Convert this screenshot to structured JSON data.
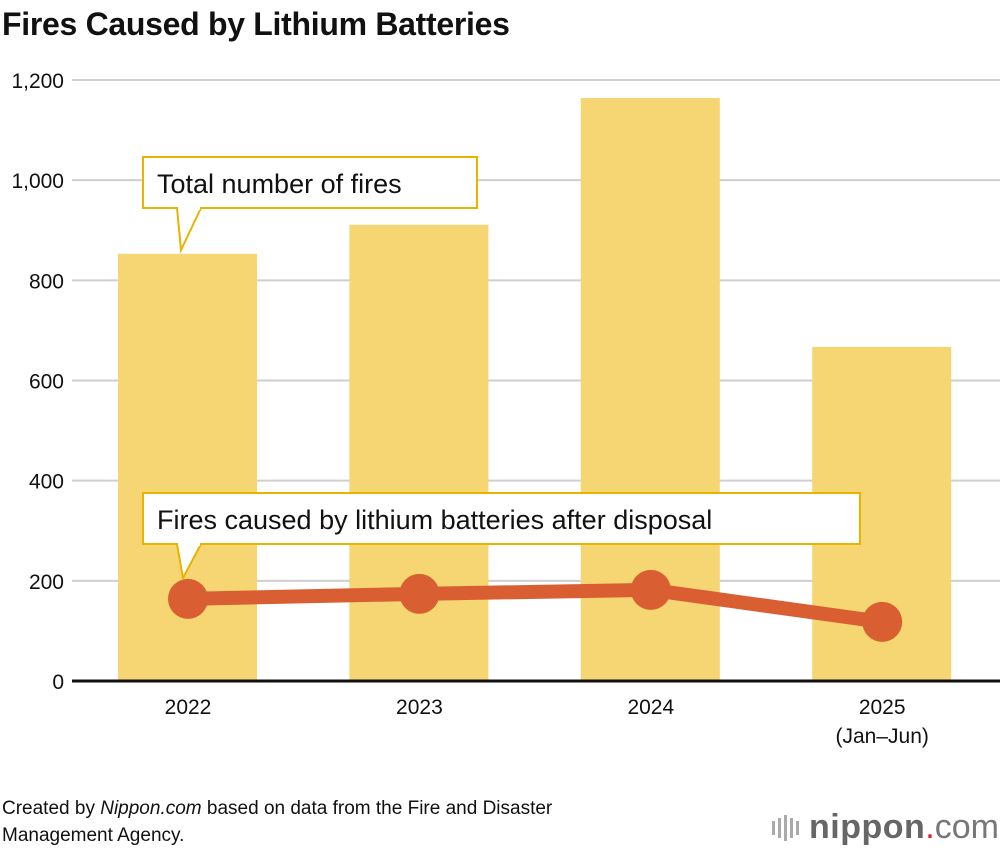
{
  "chart_data": {
    "type": "bar",
    "title": "Fires Caused by Lithium Batteries",
    "categories": [
      "2022",
      "2023",
      "2024",
      "2025"
    ],
    "category_sublabels": [
      "",
      "",
      "",
      "(Jan–Jun)"
    ],
    "ylim": [
      0,
      1200
    ],
    "yticks": [
      0,
      200,
      400,
      600,
      800,
      1000,
      1200
    ],
    "ytick_labels": [
      "0",
      "200",
      "400",
      "600",
      "800",
      "1,000",
      "1,200"
    ],
    "grid": true,
    "series": [
      {
        "name": "Total number of fires",
        "type": "bar",
        "color": "#f6d573",
        "values": [
          853,
          911,
          1164,
          667
        ]
      },
      {
        "name": "Fires caused by lithium batteries after disposal",
        "type": "line",
        "color": "#d95f33",
        "values": [
          164,
          174,
          182,
          118
        ]
      }
    ],
    "callout_border_color": "#e8b400"
  },
  "footer": {
    "prefix": "Created by ",
    "source_name": "Nippon.com",
    "suffix": " based on data from the Fire and Disaster",
    "line2": "Management Agency."
  },
  "logo": {
    "brand": "nippon",
    "dot": ".",
    "tld": "com"
  }
}
